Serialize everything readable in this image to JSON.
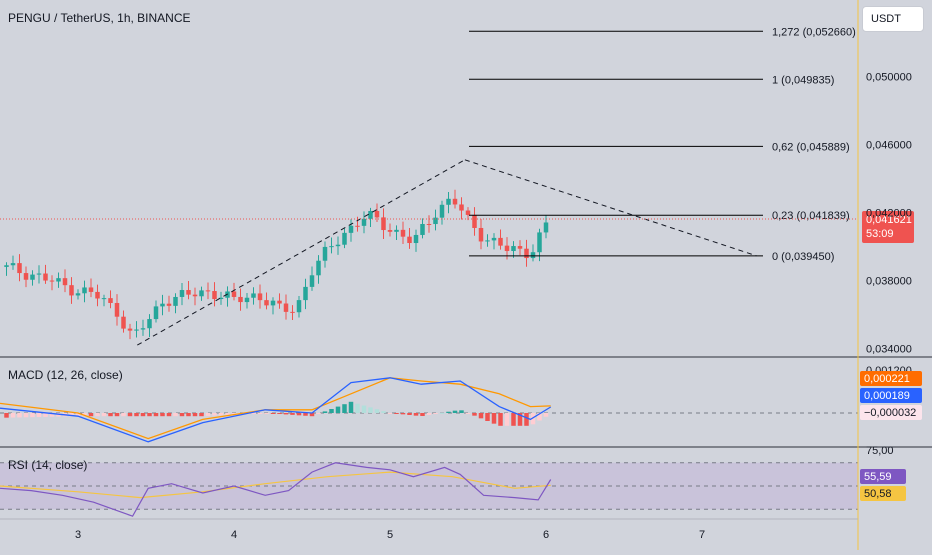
{
  "title": "PENGU / TetherUS, 1h, BINANCE",
  "currency": "USDT",
  "indicators": {
    "macd_label": "MACD (12, 26, close)",
    "rsi_label": "RSI (14, close)"
  },
  "colors": {
    "background": "#d1d4dc",
    "up": "#26a69a",
    "down": "#ef5350",
    "macd_line": "#2962ff",
    "signal_line": "#ff9800",
    "rsi_line": "#7e57c2",
    "rsi_ma": "#f5c542",
    "fib_line": "#000000"
  },
  "price_axis": {
    "labels": [
      "0,050000",
      "0,046000",
      "0,042000",
      "0,038000",
      "0,034000"
    ],
    "values": [
      0.05,
      0.046,
      0.042,
      0.038,
      0.034
    ],
    "range": [
      0.0335,
      0.0545
    ]
  },
  "macd_axis": {
    "top_label": "0,001200"
  },
  "rsi_axis": {
    "top_label": "75,00"
  },
  "x_axis": {
    "labels": [
      "3",
      "4",
      "5",
      "6",
      "7"
    ],
    "values": [
      3,
      4,
      5,
      6,
      7
    ],
    "range": [
      2.5,
      8.0
    ]
  },
  "current_price": {
    "price": "0,041621",
    "countdown": "53:09",
    "value": 0.041621
  },
  "macd_values": {
    "signal": "0,000221",
    "macd": "0,000189",
    "histogram": "−0,000032"
  },
  "rsi_values": {
    "rsi": "55,59",
    "ma": "50,58"
  },
  "fib_levels": [
    {
      "label": "1,272 (0,052660)",
      "value": 0.05266
    },
    {
      "label": "1 (0,049835)",
      "value": 0.049835
    },
    {
      "label": "0,62 (0,045889)",
      "value": 0.045889
    },
    {
      "label": "0,23 (0,041839)",
      "value": 0.041839
    },
    {
      "label": "0 (0,039450)",
      "value": 0.03945
    }
  ],
  "chart_data": {
    "type": "candlestick",
    "title": "PENGU / TetherUS, 1h, BINANCE",
    "x_ticks": [
      "3",
      "4",
      "5",
      "6",
      "7"
    ],
    "y_ticks": [
      "0,050000",
      "0,046000",
      "0,042000",
      "0,038000",
      "0,034000"
    ],
    "ylim": [
      0.0335,
      0.0545
    ],
    "grid": false,
    "price_path": [
      [
        2.5,
        0.0388
      ],
      [
        2.7,
        0.0384
      ],
      [
        2.9,
        0.0377
      ],
      [
        3.1,
        0.0372
      ],
      [
        3.25,
        0.0362
      ],
      [
        3.35,
        0.0346
      ],
      [
        3.45,
        0.0356
      ],
      [
        3.55,
        0.0369
      ],
      [
        3.7,
        0.0371
      ],
      [
        3.85,
        0.0374
      ],
      [
        4.0,
        0.0368
      ],
      [
        4.15,
        0.0372
      ],
      [
        4.3,
        0.0362
      ],
      [
        4.4,
        0.0364
      ],
      [
        4.5,
        0.0386
      ],
      [
        4.6,
        0.0397
      ],
      [
        4.7,
        0.0408
      ],
      [
        4.85,
        0.0418
      ],
      [
        5.0,
        0.0411
      ],
      [
        5.15,
        0.0402
      ],
      [
        5.3,
        0.0422
      ],
      [
        5.4,
        0.0428
      ],
      [
        5.5,
        0.0415
      ],
      [
        5.6,
        0.0406
      ],
      [
        5.75,
        0.0398
      ],
      [
        5.9,
        0.0397
      ],
      [
        6.0,
        0.0412
      ],
      [
        6.03,
        0.041621
      ]
    ],
    "trend_lines": [
      {
        "from": [
          3.38,
          0.0342
        ],
        "to": [
          5.48,
          0.0451
        ]
      },
      {
        "from": [
          5.48,
          0.0451
        ],
        "to": [
          7.35,
          0.03945
        ]
      }
    ],
    "macd": {
      "macd_series": [
        [
          2.5,
          0.00015
        ],
        [
          3.0,
          -0.0001
        ],
        [
          3.45,
          -0.0009
        ],
        [
          3.8,
          -0.0003
        ],
        [
          4.2,
          0.0001
        ],
        [
          4.5,
          0.0
        ],
        [
          4.75,
          0.00095
        ],
        [
          5.0,
          0.0011
        ],
        [
          5.2,
          0.0009
        ],
        [
          5.45,
          0.001
        ],
        [
          5.7,
          0.0002
        ],
        [
          5.9,
          -0.0002
        ],
        [
          6.03,
          0.000189
        ]
      ],
      "signal_series": [
        [
          2.5,
          0.0003
        ],
        [
          3.0,
          0.0
        ],
        [
          3.45,
          -0.0008
        ],
        [
          3.8,
          -0.0002
        ],
        [
          4.2,
          0.0001
        ],
        [
          4.5,
          0.0001
        ],
        [
          4.75,
          0.0006
        ],
        [
          5.0,
          0.0011
        ],
        [
          5.2,
          0.001
        ],
        [
          5.45,
          0.0009
        ],
        [
          5.7,
          0.0006
        ],
        [
          5.9,
          0.0002
        ],
        [
          6.03,
          0.000221
        ]
      ]
    },
    "rsi": {
      "ylim": [
        25,
        75
      ],
      "rsi_series": [
        [
          2.5,
          48
        ],
        [
          2.7,
          46
        ],
        [
          2.9,
          42
        ],
        [
          3.1,
          36
        ],
        [
          3.35,
          24
        ],
        [
          3.45,
          48
        ],
        [
          3.6,
          52
        ],
        [
          3.8,
          44
        ],
        [
          4.0,
          50
        ],
        [
          4.2,
          42
        ],
        [
          4.35,
          46
        ],
        [
          4.5,
          62
        ],
        [
          4.65,
          70
        ],
        [
          4.85,
          66
        ],
        [
          5.0,
          64
        ],
        [
          5.15,
          58
        ],
        [
          5.35,
          66
        ],
        [
          5.45,
          60
        ],
        [
          5.6,
          42
        ],
        [
          5.8,
          40
        ],
        [
          5.95,
          38
        ],
        [
          6.03,
          55.59
        ]
      ],
      "ma_series": [
        [
          2.5,
          50
        ],
        [
          3.0,
          45
        ],
        [
          3.4,
          40
        ],
        [
          3.8,
          45
        ],
        [
          4.2,
          52
        ],
        [
          4.6,
          58
        ],
        [
          5.0,
          62
        ],
        [
          5.4,
          58
        ],
        [
          5.8,
          48
        ],
        [
          6.03,
          50.58
        ]
      ]
    }
  }
}
